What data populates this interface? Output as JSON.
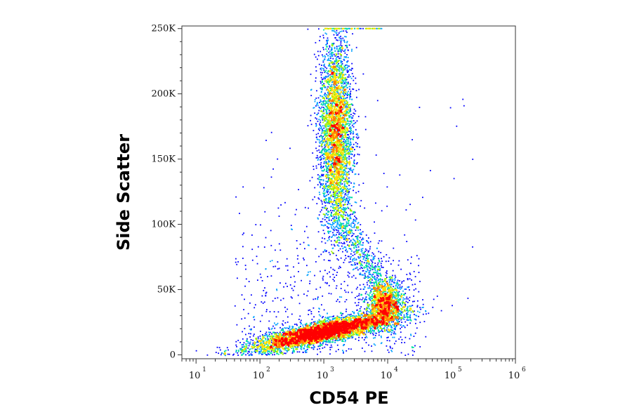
{
  "chart_data": {
    "type": "scatter",
    "plot_style": "flow cytometry pseudocolor density dot plot",
    "xlabel": "CD54 PE",
    "ylabel": "Side Scatter",
    "x_scale": "log",
    "xlim": [
      6,
      1000000
    ],
    "ylim": [
      -3000,
      252000
    ],
    "x_ticks": [
      {
        "base": "10",
        "exp": "1",
        "value": 10
      },
      {
        "base": "10",
        "exp": "2",
        "value": 100
      },
      {
        "base": "10",
        "exp": "3",
        "value": 1000
      },
      {
        "base": "10",
        "exp": "4",
        "value": 10000
      },
      {
        "base": "10",
        "exp": "5",
        "value": 100000
      },
      {
        "base": "10",
        "exp": "6",
        "value": 1000000
      }
    ],
    "y_ticks": [
      {
        "label": "0",
        "value": 0
      },
      {
        "label": "50K",
        "value": 50000
      },
      {
        "label": "100K",
        "value": 100000
      },
      {
        "label": "150K",
        "value": 150000
      },
      {
        "label": "200K",
        "value": 200000
      },
      {
        "label": "250K",
        "value": 250000
      }
    ],
    "density_colors": [
      "#0000ff",
      "#00a0ff",
      "#00e0a0",
      "#a0f000",
      "#ffe000",
      "#ff8000",
      "#ff0000"
    ],
    "populations": [
      {
        "center_x": 1000,
        "center_y": 18000,
        "peak_density": "high (red)"
      },
      {
        "center_x": 1500,
        "center_y": 170000,
        "peak_density": "medium (green/yellow)"
      },
      {
        "center_x": 9000,
        "center_y": 40000,
        "peak_density": "medium (cyan/green)"
      }
    ],
    "grid": false,
    "legend": "none"
  }
}
